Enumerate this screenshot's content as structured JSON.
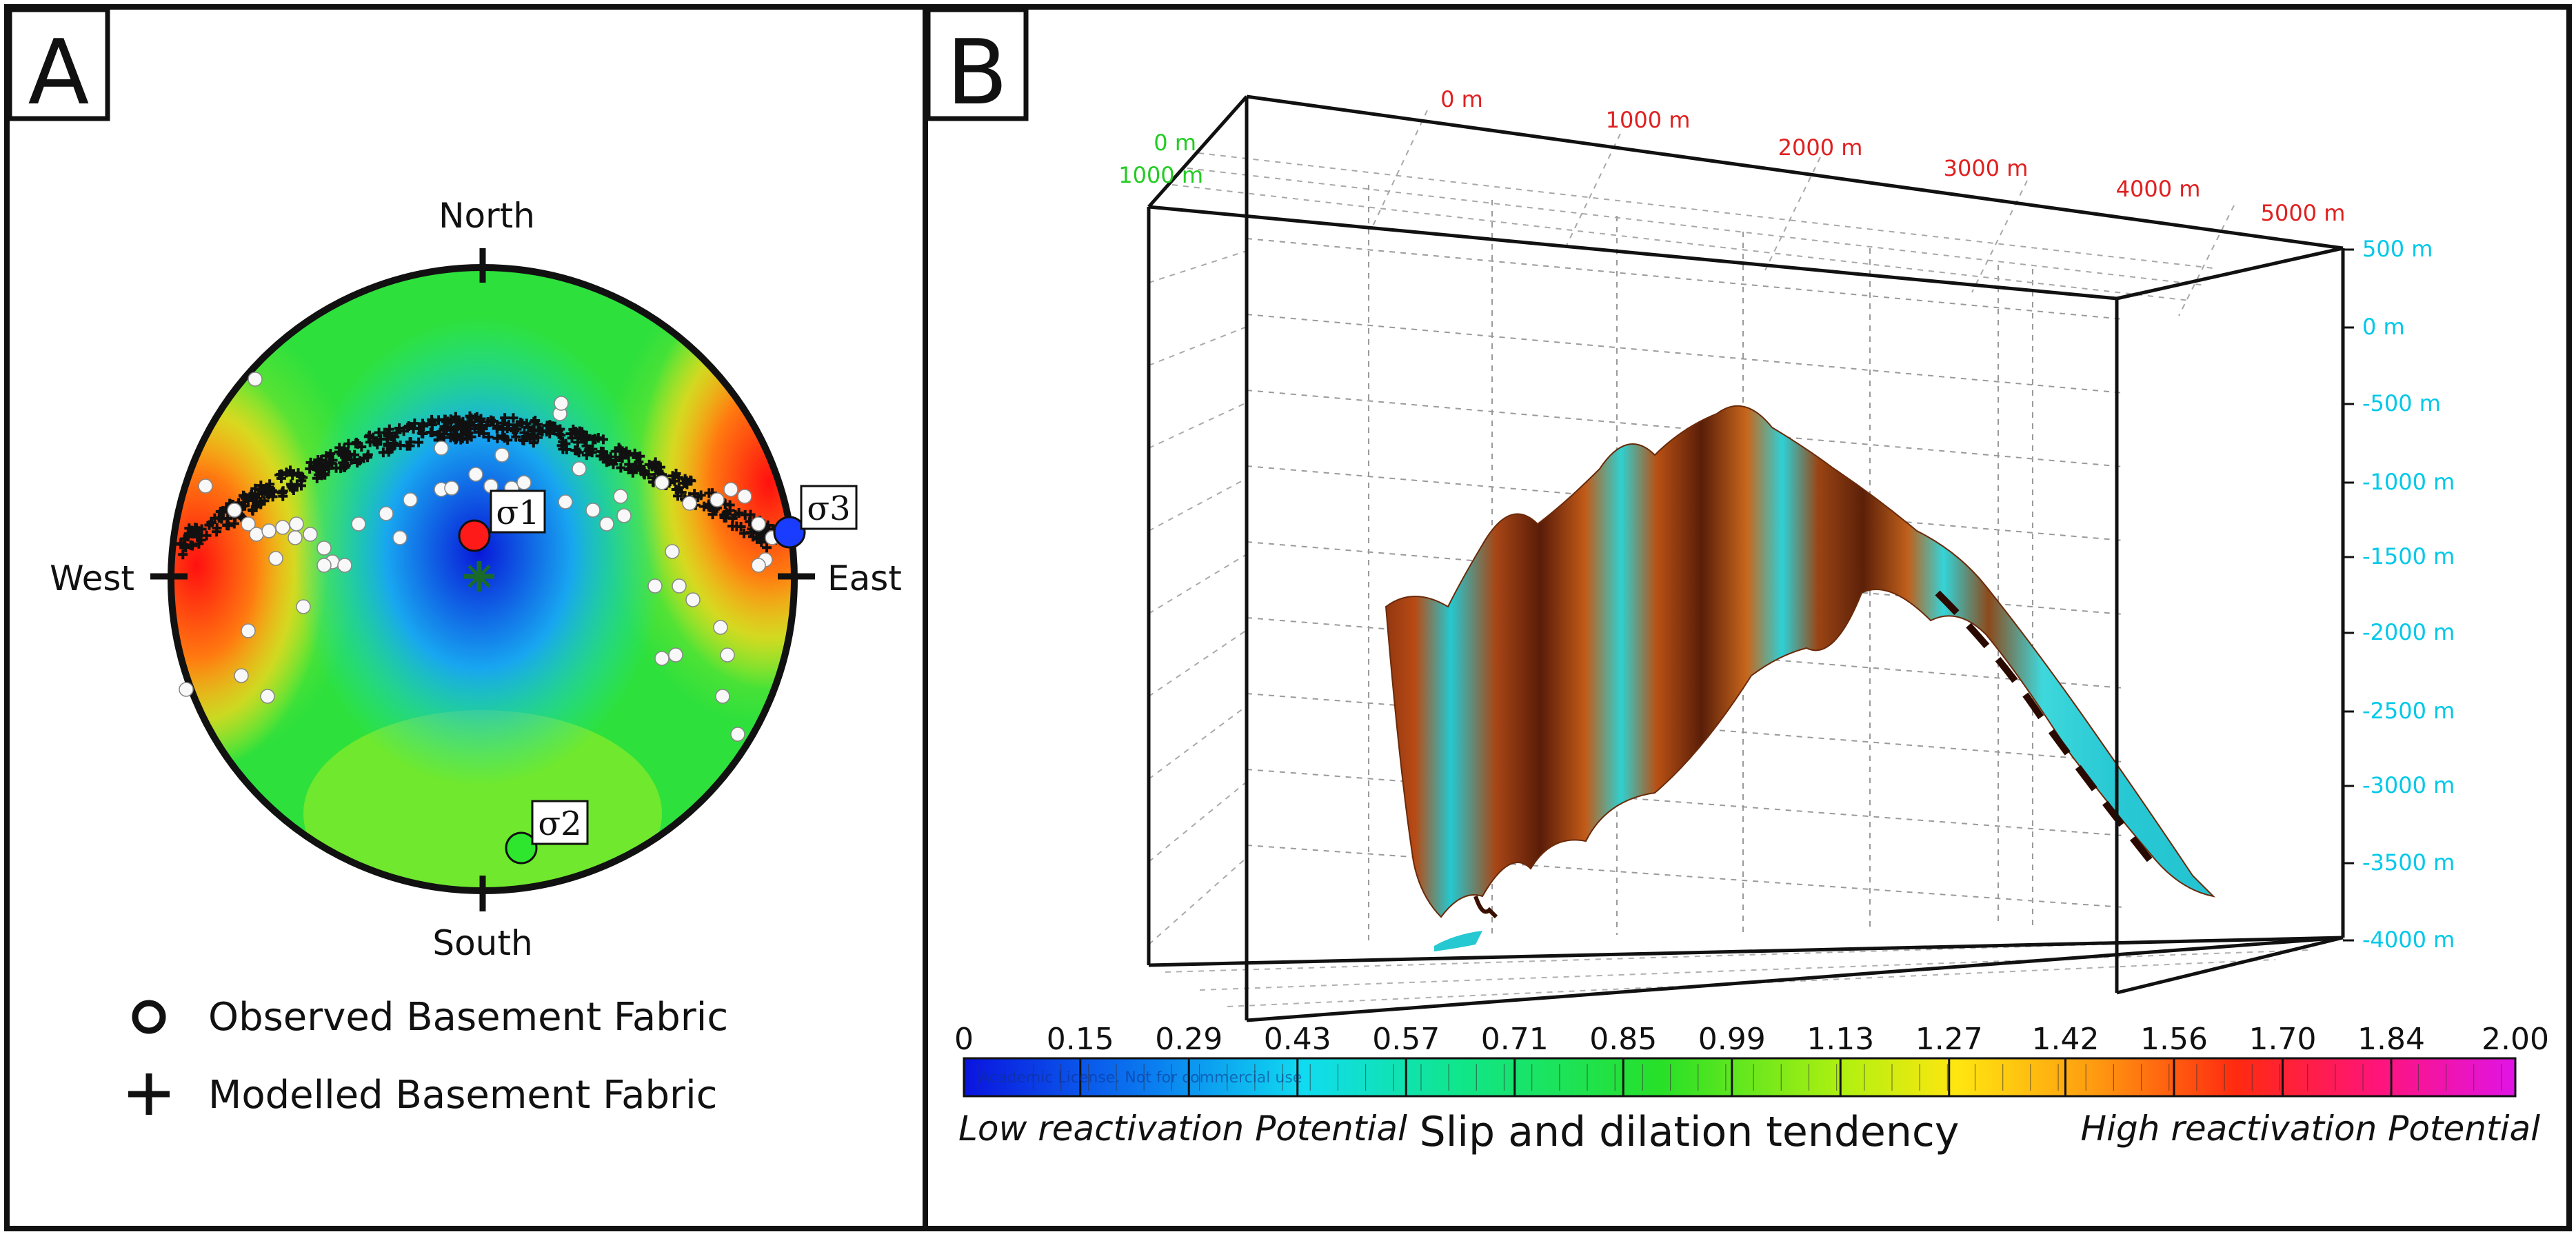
{
  "panel_a": {
    "label": "A",
    "directions": {
      "north": "North",
      "south": "South",
      "east": "East",
      "west": "West"
    },
    "stress_labels": {
      "s1": "σ1",
      "s2": "σ2",
      "s3": "σ3"
    },
    "stress_colors": {
      "s1": "#ff1a1a",
      "s2": "#2ee62e",
      "s3": "#1a3cff"
    },
    "legend": {
      "observed": "Observed Basement Fabric",
      "modelled": "Modelled Basement Fabric"
    }
  },
  "panel_b": {
    "label": "B",
    "x_ticks": [
      "0 m",
      "1000 m",
      "2000 m",
      "3000 m",
      "4000 m",
      "5000 m"
    ],
    "y_ticks": [
      "0 m",
      "1000 m"
    ],
    "z_ticks": [
      "500 m",
      "0 m",
      "-500 m",
      "-1000 m",
      "-1500 m",
      "-2000 m",
      "-2500 m",
      "-3000 m",
      "-3500 m",
      "-4000 m"
    ],
    "colors": {
      "x_axis": "#e02020",
      "y_axis": "#22cc22",
      "z_axis": "#00c8e8"
    }
  },
  "colorbar": {
    "ticks": [
      "0",
      "0.15",
      "0.29",
      "0.43",
      "0.57",
      "0.71",
      "0.85",
      "0.99",
      "1.13",
      "1.27",
      "1.42",
      "1.56",
      "1.70",
      "1.84",
      "2.00"
    ],
    "min": 0,
    "max": 2.0,
    "watermark": "Academic License. Not for commercial use",
    "low_label": "Low reactivation Potential",
    "title": "Slip and dilation tendency",
    "high_label": "High reactivation Potential"
  }
}
